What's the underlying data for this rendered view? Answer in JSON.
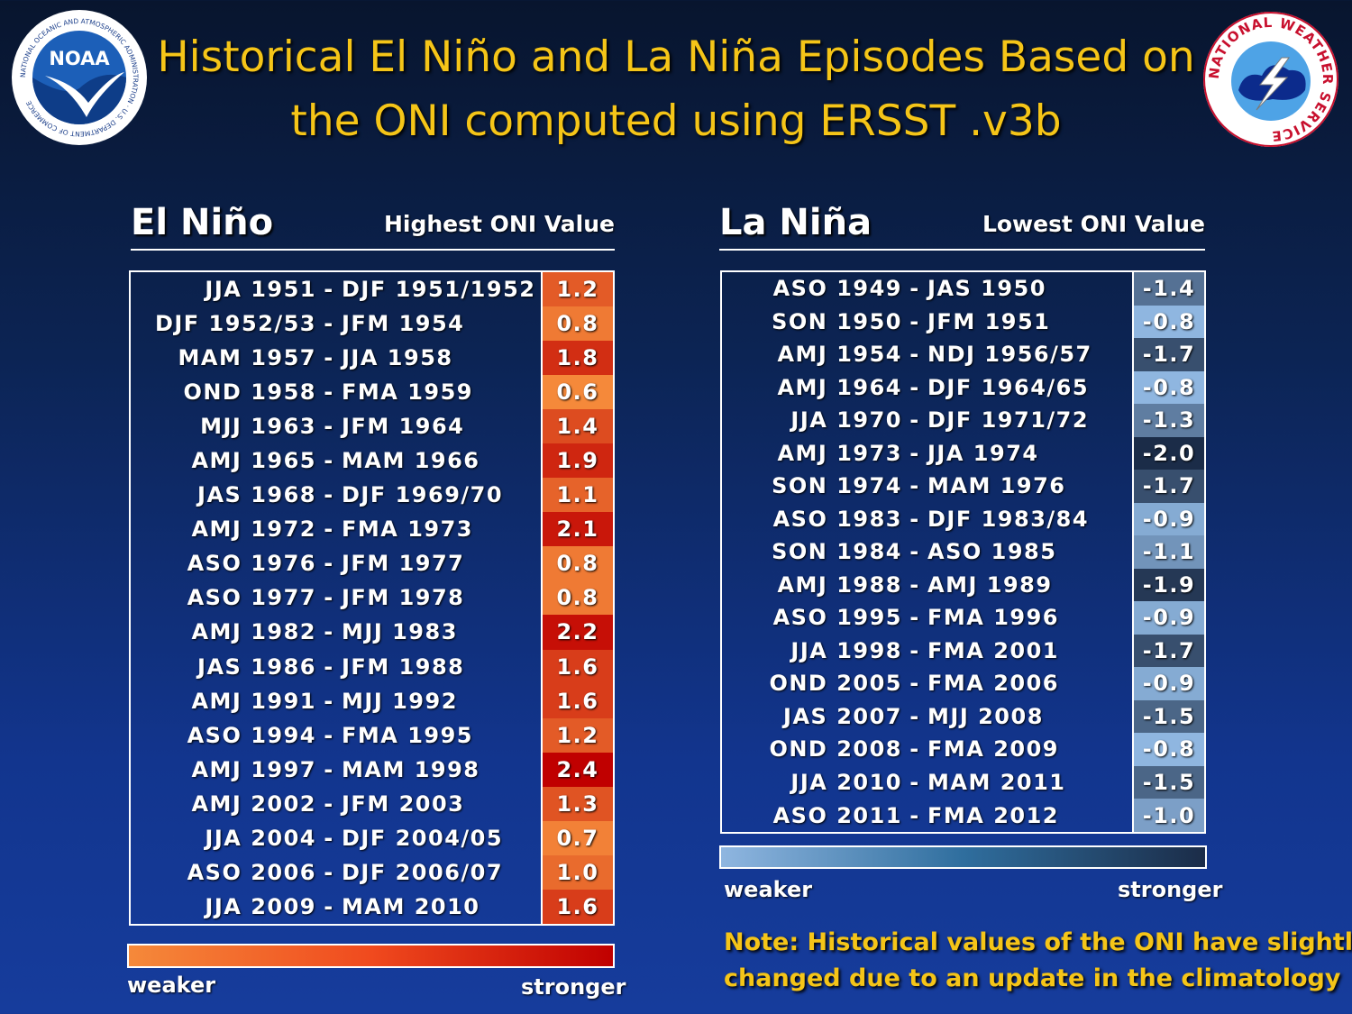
{
  "title": {
    "line1": "Historical El Niño and La Niña Episodes Based on",
    "line2": "the ONI computed using ERSST .v3b"
  },
  "logos": {
    "noaa": {
      "wordmark": "NOAA",
      "ring_text": "NATIONAL OCEANIC AND ATMOSPHERIC ADMINISTRATION · U.S. DEPARTMENT OF COMMERCE"
    },
    "nws": {
      "ring_text": "NATIONAL WEATHER SERVICE"
    }
  },
  "el_nino": {
    "heading": "El Niño",
    "value_heading": "Highest ONI Value",
    "rows": [
      {
        "start": "JJA 1951",
        "end": "DJF 1951/1952",
        "value": "1.2"
      },
      {
        "start": "DJF 1952/53",
        "end": "JFM 1954",
        "value": "0.8"
      },
      {
        "start": "MAM 1957",
        "end": "JJA 1958",
        "value": "1.8"
      },
      {
        "start": "OND 1958",
        "end": "FMA 1959",
        "value": "0.6"
      },
      {
        "start": "MJJ 1963",
        "end": "JFM 1964",
        "value": "1.4"
      },
      {
        "start": "AMJ 1965",
        "end": "MAM 1966",
        "value": "1.9"
      },
      {
        "start": "JAS 1968",
        "end": "DJF 1969/70",
        "value": "1.1"
      },
      {
        "start": "AMJ 1972",
        "end": "FMA 1973",
        "value": "2.1"
      },
      {
        "start": "ASO 1976",
        "end": "JFM 1977",
        "value": "0.8"
      },
      {
        "start": "ASO 1977",
        "end": "JFM 1978",
        "value": "0.8"
      },
      {
        "start": "AMJ 1982",
        "end": "MJJ 1983",
        "value": "2.2"
      },
      {
        "start": "JAS 1986",
        "end": "JFM 1988",
        "value": "1.6"
      },
      {
        "start": "AMJ 1991",
        "end": "MJJ 1992",
        "value": "1.6"
      },
      {
        "start": "ASO 1994",
        "end": "FMA 1995",
        "value": "1.2"
      },
      {
        "start": "AMJ 1997",
        "end": "MAM 1998",
        "value": "2.4"
      },
      {
        "start": "AMJ 2002",
        "end": "JFM 2003",
        "value": "1.3"
      },
      {
        "start": "JJA 2004",
        "end": "DJF 2004/05",
        "value": "0.7"
      },
      {
        "start": "ASO 2006",
        "end": "DJF 2006/07",
        "value": "1.0"
      },
      {
        "start": "JJA 2009",
        "end": "MAM 2010",
        "value": "1.6"
      }
    ],
    "scale": {
      "weak": "weaker",
      "strong": "stronger",
      "color_weak": "#f5893a",
      "color_strong": "#c00000"
    }
  },
  "la_nina": {
    "heading": "La Niña",
    "value_heading": "Lowest ONI Value",
    "rows": [
      {
        "start": "ASO 1949",
        "end": "JAS 1950",
        "value": "-1.4"
      },
      {
        "start": "SON 1950",
        "end": "JFM 1951",
        "value": "-0.8"
      },
      {
        "start": "AMJ 1954",
        "end": "NDJ 1956/57",
        "value": "-1.7"
      },
      {
        "start": "AMJ 1964",
        "end": "DJF 1964/65",
        "value": "-0.8"
      },
      {
        "start": "JJA 1970",
        "end": "DJF 1971/72",
        "value": "-1.3"
      },
      {
        "start": "AMJ 1973",
        "end": "JJA 1974",
        "value": "-2.0"
      },
      {
        "start": "SON 1974",
        "end": "MAM 1976",
        "value": "-1.7"
      },
      {
        "start": "ASO 1983",
        "end": "DJF 1983/84",
        "value": "-0.9"
      },
      {
        "start": "SON 1984",
        "end": "ASO 1985",
        "value": "-1.1"
      },
      {
        "start": "AMJ 1988",
        "end": "AMJ 1989",
        "value": "-1.9"
      },
      {
        "start": "ASO 1995",
        "end": "FMA 1996",
        "value": "-0.9"
      },
      {
        "start": "JJA 1998",
        "end": "FMA 2001",
        "value": "-1.7"
      },
      {
        "start": "OND 2005",
        "end": "FMA 2006",
        "value": "-0.9"
      },
      {
        "start": "JAS 2007",
        "end": "MJJ 2008",
        "value": "-1.5"
      },
      {
        "start": "OND 2008",
        "end": "FMA 2009",
        "value": "-0.8"
      },
      {
        "start": "JJA 2010",
        "end": "MAM 2011",
        "value": "-1.5"
      },
      {
        "start": "ASO 2011",
        "end": "FMA 2012",
        "value": "-1.0"
      }
    ],
    "scale": {
      "weak": "weaker",
      "strong": "stronger",
      "color_weak": "#8fb6e0",
      "color_strong": "#1b2c48"
    }
  },
  "note": {
    "line1": "Note: Historical values of the ONI have slightly",
    "line2": "changed due to an update in the climatology"
  }
}
